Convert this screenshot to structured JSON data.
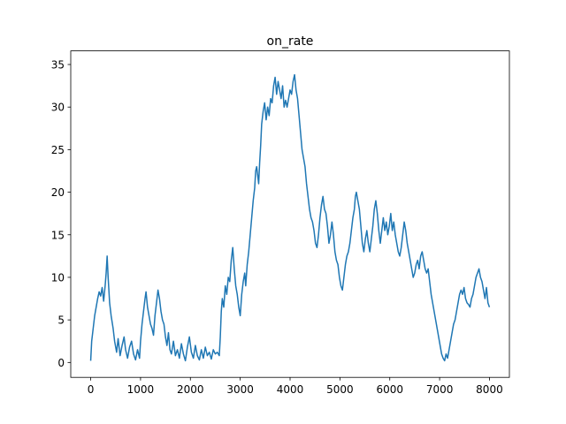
{
  "chart_data": {
    "type": "line",
    "title": "on_rate",
    "xlabel": "",
    "ylabel": "",
    "xlim": [
      -400,
      8400
    ],
    "ylim": [
      -1.75,
      36.6
    ],
    "xticks": [
      0,
      1000,
      2000,
      3000,
      4000,
      5000,
      6000,
      7000,
      8000
    ],
    "yticks": [
      0,
      5,
      10,
      15,
      20,
      25,
      30,
      35
    ],
    "grid": false,
    "series": [
      {
        "color": "#1f77b4",
        "points": [
          [
            0,
            0.2
          ],
          [
            20,
            2.5
          ],
          [
            50,
            4.0
          ],
          [
            80,
            5.5
          ],
          [
            110,
            6.5
          ],
          [
            140,
            7.5
          ],
          [
            170,
            8.3
          ],
          [
            200,
            7.8
          ],
          [
            230,
            8.8
          ],
          [
            260,
            7.2
          ],
          [
            290,
            9.0
          ],
          [
            310,
            10.5
          ],
          [
            330,
            12.5
          ],
          [
            350,
            10.0
          ],
          [
            380,
            7.0
          ],
          [
            410,
            5.5
          ],
          [
            450,
            4.0
          ],
          [
            480,
            2.5
          ],
          [
            520,
            1.2
          ],
          [
            550,
            2.8
          ],
          [
            590,
            0.8
          ],
          [
            630,
            2.0
          ],
          [
            670,
            3.0
          ],
          [
            700,
            1.5
          ],
          [
            740,
            0.5
          ],
          [
            780,
            1.8
          ],
          [
            820,
            2.5
          ],
          [
            860,
            1.0
          ],
          [
            900,
            0.3
          ],
          [
            940,
            1.5
          ],
          [
            980,
            0.5
          ],
          [
            1000,
            2.5
          ],
          [
            1030,
            4.5
          ],
          [
            1060,
            6.0
          ],
          [
            1090,
            7.5
          ],
          [
            1110,
            8.3
          ],
          [
            1140,
            6.5
          ],
          [
            1170,
            5.5
          ],
          [
            1200,
            4.5
          ],
          [
            1230,
            4.0
          ],
          [
            1260,
            3.2
          ],
          [
            1290,
            5.5
          ],
          [
            1320,
            7.0
          ],
          [
            1350,
            8.5
          ],
          [
            1380,
            7.5
          ],
          [
            1410,
            6.0
          ],
          [
            1440,
            5.0
          ],
          [
            1470,
            4.5
          ],
          [
            1500,
            3.0
          ],
          [
            1530,
            2.0
          ],
          [
            1560,
            3.5
          ],
          [
            1590,
            1.5
          ],
          [
            1620,
            1.0
          ],
          [
            1660,
            2.5
          ],
          [
            1700,
            0.8
          ],
          [
            1740,
            1.5
          ],
          [
            1780,
            0.5
          ],
          [
            1820,
            2.2
          ],
          [
            1860,
            1.0
          ],
          [
            1900,
            0.2
          ],
          [
            1940,
            1.8
          ],
          [
            1980,
            3.0
          ],
          [
            2020,
            1.2
          ],
          [
            2060,
            0.5
          ],
          [
            2100,
            2.0
          ],
          [
            2140,
            0.8
          ],
          [
            2180,
            0.3
          ],
          [
            2220,
            1.5
          ],
          [
            2260,
            0.5
          ],
          [
            2300,
            1.8
          ],
          [
            2340,
            0.8
          ],
          [
            2380,
            1.2
          ],
          [
            2420,
            0.4
          ],
          [
            2460,
            1.5
          ],
          [
            2500,
            1.0
          ],
          [
            2540,
            1.2
          ],
          [
            2580,
            0.8
          ],
          [
            2600,
            3.0
          ],
          [
            2620,
            6.0
          ],
          [
            2640,
            7.5
          ],
          [
            2670,
            6.5
          ],
          [
            2700,
            9.0
          ],
          [
            2730,
            8.0
          ],
          [
            2760,
            10.0
          ],
          [
            2790,
            9.5
          ],
          [
            2820,
            12.0
          ],
          [
            2850,
            13.5
          ],
          [
            2880,
            11.0
          ],
          [
            2910,
            9.0
          ],
          [
            2940,
            8.0
          ],
          [
            2970,
            6.5
          ],
          [
            3000,
            5.5
          ],
          [
            3030,
            8.0
          ],
          [
            3060,
            9.5
          ],
          [
            3090,
            10.5
          ],
          [
            3110,
            9.0
          ],
          [
            3140,
            11.5
          ],
          [
            3170,
            13.0
          ],
          [
            3200,
            15.0
          ],
          [
            3230,
            17.0
          ],
          [
            3260,
            19.0
          ],
          [
            3290,
            20.5
          ],
          [
            3310,
            22.5
          ],
          [
            3330,
            23.0
          ],
          [
            3350,
            22.0
          ],
          [
            3370,
            21.0
          ],
          [
            3390,
            23.5
          ],
          [
            3410,
            25.5
          ],
          [
            3430,
            28.0
          ],
          [
            3460,
            29.5
          ],
          [
            3490,
            30.5
          ],
          [
            3520,
            28.5
          ],
          [
            3550,
            30.0
          ],
          [
            3580,
            29.0
          ],
          [
            3610,
            31.0
          ],
          [
            3640,
            30.5
          ],
          [
            3670,
            32.5
          ],
          [
            3700,
            33.5
          ],
          [
            3730,
            31.5
          ],
          [
            3760,
            33.0
          ],
          [
            3790,
            32.0
          ],
          [
            3820,
            31.0
          ],
          [
            3850,
            32.5
          ],
          [
            3880,
            30.0
          ],
          [
            3910,
            30.8
          ],
          [
            3940,
            30.0
          ],
          [
            3970,
            31.0
          ],
          [
            4000,
            32.0
          ],
          [
            4030,
            31.5
          ],
          [
            4060,
            33.0
          ],
          [
            4090,
            33.8
          ],
          [
            4120,
            32.0
          ],
          [
            4150,
            31.0
          ],
          [
            4180,
            29.0
          ],
          [
            4210,
            27.0
          ],
          [
            4240,
            25.0
          ],
          [
            4270,
            24.0
          ],
          [
            4300,
            23.0
          ],
          [
            4330,
            21.0
          ],
          [
            4360,
            19.5
          ],
          [
            4390,
            18.0
          ],
          [
            4420,
            17.0
          ],
          [
            4450,
            16.5
          ],
          [
            4480,
            15.5
          ],
          [
            4510,
            14.0
          ],
          [
            4540,
            13.5
          ],
          [
            4570,
            15.0
          ],
          [
            4600,
            17.0
          ],
          [
            4630,
            18.5
          ],
          [
            4660,
            19.5
          ],
          [
            4690,
            18.0
          ],
          [
            4720,
            17.5
          ],
          [
            4750,
            16.0
          ],
          [
            4780,
            14.0
          ],
          [
            4810,
            15.0
          ],
          [
            4840,
            16.5
          ],
          [
            4870,
            15.0
          ],
          [
            4900,
            13.0
          ],
          [
            4930,
            12.0
          ],
          [
            4960,
            11.5
          ],
          [
            4990,
            10.0
          ],
          [
            5020,
            9.0
          ],
          [
            5050,
            8.5
          ],
          [
            5080,
            10.0
          ],
          [
            5110,
            11.5
          ],
          [
            5140,
            12.5
          ],
          [
            5170,
            13.0
          ],
          [
            5200,
            14.0
          ],
          [
            5230,
            15.5
          ],
          [
            5260,
            17.0
          ],
          [
            5290,
            18.0
          ],
          [
            5310,
            19.5
          ],
          [
            5330,
            20.0
          ],
          [
            5360,
            19.0
          ],
          [
            5390,
            18.0
          ],
          [
            5420,
            16.0
          ],
          [
            5450,
            14.0
          ],
          [
            5480,
            13.0
          ],
          [
            5510,
            14.5
          ],
          [
            5540,
            15.5
          ],
          [
            5570,
            14.0
          ],
          [
            5600,
            13.0
          ],
          [
            5630,
            14.5
          ],
          [
            5660,
            16.0
          ],
          [
            5690,
            18.0
          ],
          [
            5720,
            19.0
          ],
          [
            5750,
            17.5
          ],
          [
            5780,
            15.5
          ],
          [
            5810,
            14.0
          ],
          [
            5840,
            15.5
          ],
          [
            5870,
            17.0
          ],
          [
            5900,
            15.5
          ],
          [
            5930,
            16.5
          ],
          [
            5960,
            15.0
          ],
          [
            5990,
            16.0
          ],
          [
            6020,
            17.5
          ],
          [
            6050,
            15.5
          ],
          [
            6080,
            16.5
          ],
          [
            6110,
            15.0
          ],
          [
            6140,
            14.0
          ],
          [
            6170,
            13.0
          ],
          [
            6200,
            12.5
          ],
          [
            6230,
            13.5
          ],
          [
            6260,
            15.0
          ],
          [
            6290,
            16.5
          ],
          [
            6320,
            15.5
          ],
          [
            6350,
            14.0
          ],
          [
            6380,
            13.0
          ],
          [
            6410,
            12.0
          ],
          [
            6440,
            11.0
          ],
          [
            6470,
            10.0
          ],
          [
            6500,
            10.5
          ],
          [
            6530,
            11.5
          ],
          [
            6560,
            12.0
          ],
          [
            6590,
            11.0
          ],
          [
            6620,
            12.5
          ],
          [
            6650,
            13.0
          ],
          [
            6680,
            12.0
          ],
          [
            6710,
            11.0
          ],
          [
            6740,
            10.5
          ],
          [
            6770,
            11.0
          ],
          [
            6800,
            9.5
          ],
          [
            6830,
            8.0
          ],
          [
            6860,
            7.0
          ],
          [
            6890,
            6.0
          ],
          [
            6920,
            5.0
          ],
          [
            6950,
            4.0
          ],
          [
            6980,
            3.0
          ],
          [
            7010,
            2.0
          ],
          [
            7040,
            1.0
          ],
          [
            7070,
            0.5
          ],
          [
            7100,
            0.2
          ],
          [
            7130,
            1.0
          ],
          [
            7160,
            0.5
          ],
          [
            7190,
            1.5
          ],
          [
            7220,
            2.5
          ],
          [
            7250,
            3.5
          ],
          [
            7280,
            4.5
          ],
          [
            7310,
            5.0
          ],
          [
            7340,
            6.0
          ],
          [
            7370,
            7.0
          ],
          [
            7400,
            8.0
          ],
          [
            7430,
            8.5
          ],
          [
            7460,
            8.0
          ],
          [
            7490,
            8.8
          ],
          [
            7520,
            7.5
          ],
          [
            7550,
            7.0
          ],
          [
            7580,
            6.8
          ],
          [
            7610,
            6.5
          ],
          [
            7640,
            7.5
          ],
          [
            7670,
            8.0
          ],
          [
            7700,
            9.0
          ],
          [
            7730,
            10.0
          ],
          [
            7760,
            10.5
          ],
          [
            7790,
            11.0
          ],
          [
            7820,
            10.0
          ],
          [
            7850,
            9.5
          ],
          [
            7880,
            8.5
          ],
          [
            7910,
            7.5
          ],
          [
            7940,
            8.8
          ],
          [
            7970,
            7.0
          ],
          [
            8000,
            6.5
          ]
        ]
      }
    ]
  }
}
